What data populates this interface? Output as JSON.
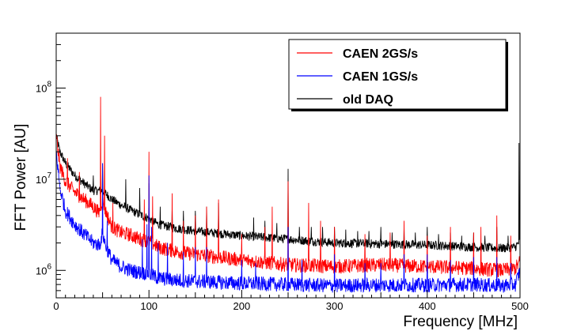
{
  "chart_data": {
    "type": "line",
    "title": "",
    "xlabel": "Frequency [MHz]",
    "ylabel": "FFT Power [AU]",
    "xlim": [
      0,
      500
    ],
    "ylim": [
      500000,
      400000000
    ],
    "yscale": "log",
    "grid": false,
    "legend_position": "top-right",
    "x_ticks": [
      {
        "value": 0,
        "label": "0"
      },
      {
        "value": 100,
        "label": "100"
      },
      {
        "value": 200,
        "label": "200"
      },
      {
        "value": 300,
        "label": "300"
      },
      {
        "value": 400,
        "label": "400"
      },
      {
        "value": 500,
        "label": "500"
      }
    ],
    "y_ticks": [
      {
        "value": 1000000,
        "base": "10",
        "exp": "6"
      },
      {
        "value": 10000000,
        "base": "10",
        "exp": "7"
      },
      {
        "value": 100000000,
        "base": "10",
        "exp": "8"
      }
    ],
    "series": [
      {
        "name": "CAEN 2GS/s",
        "color": "#ff0000",
        "baseline": [
          [
            0,
            30000000
          ],
          [
            4,
            14000000
          ],
          [
            10,
            9500000
          ],
          [
            20,
            7200000
          ],
          [
            30,
            6000000
          ],
          [
            40,
            5000000
          ],
          [
            46,
            4300000
          ],
          [
            50,
            6000000
          ],
          [
            53,
            4500000
          ],
          [
            60,
            3000000
          ],
          [
            70,
            2600000
          ],
          [
            80,
            2450000
          ],
          [
            90,
            2200000
          ],
          [
            100,
            2100000
          ],
          [
            110,
            1800000
          ],
          [
            130,
            1600000
          ],
          [
            150,
            1500000
          ],
          [
            200,
            1300000
          ],
          [
            250,
            1150000
          ],
          [
            300,
            1100000
          ],
          [
            350,
            1150000
          ],
          [
            400,
            1100000
          ],
          [
            450,
            1050000
          ],
          [
            480,
            1000000
          ],
          [
            495,
            1050000
          ],
          [
            500,
            1250000
          ]
        ],
        "noise": 0.08,
        "spikes": [
          [
            12,
            17000000
          ],
          [
            25,
            12000000
          ],
          [
            48,
            80000000
          ],
          [
            52,
            30000000
          ],
          [
            61,
            5500000
          ],
          [
            95,
            6000000
          ],
          [
            100,
            20000000
          ],
          [
            104,
            6500000
          ],
          [
            125,
            7000000
          ],
          [
            137,
            3500000
          ],
          [
            150,
            4000000
          ],
          [
            162,
            5000000
          ],
          [
            175,
            6000000
          ],
          [
            200,
            2500000
          ],
          [
            225,
            3000000
          ],
          [
            233,
            5000000
          ],
          [
            250,
            9500000
          ],
          [
            272,
            5500000
          ],
          [
            285,
            3500000
          ],
          [
            300,
            3000000
          ],
          [
            333,
            2500000
          ],
          [
            360,
            2600000
          ],
          [
            375,
            3500000
          ],
          [
            400,
            2400000
          ],
          [
            425,
            3000000
          ],
          [
            450,
            2600000
          ],
          [
            458,
            3000000
          ],
          [
            475,
            4000000
          ],
          [
            490,
            2400000
          ]
        ]
      },
      {
        "name": "CAEN 1GS/s",
        "color": "#0000ff",
        "baseline": [
          [
            0,
            20000000
          ],
          [
            4,
            8000000
          ],
          [
            10,
            4500000
          ],
          [
            20,
            3200000
          ],
          [
            30,
            2500000
          ],
          [
            40,
            2000000
          ],
          [
            47,
            1900000
          ],
          [
            50,
            2600000
          ],
          [
            53,
            1900000
          ],
          [
            60,
            1300000
          ],
          [
            70,
            1100000
          ],
          [
            80,
            1000000
          ],
          [
            90,
            950000
          ],
          [
            100,
            920000
          ],
          [
            110,
            820000
          ],
          [
            130,
            780000
          ],
          [
            150,
            760000
          ],
          [
            200,
            720000
          ],
          [
            250,
            700000
          ],
          [
            300,
            680000
          ],
          [
            350,
            690000
          ],
          [
            400,
            690000
          ],
          [
            450,
            700000
          ],
          [
            480,
            680000
          ],
          [
            495,
            700000
          ],
          [
            500,
            1000000
          ]
        ],
        "noise": 0.08,
        "spikes": [
          [
            50,
            15000000
          ],
          [
            55,
            3500000
          ],
          [
            93,
            2200000
          ],
          [
            98,
            3200000
          ],
          [
            100,
            11000000
          ],
          [
            103,
            3000000
          ],
          [
            110,
            2000000
          ],
          [
            120,
            2000000
          ],
          [
            137,
            1600000
          ],
          [
            150,
            1800000
          ],
          [
            162,
            1800000
          ],
          [
            200,
            1300000
          ],
          [
            215,
            1200000
          ],
          [
            250,
            3000000
          ],
          [
            265,
            1300000
          ],
          [
            300,
            1500000
          ],
          [
            333,
            1200000
          ],
          [
            350,
            1200000
          ],
          [
            375,
            1500000
          ],
          [
            400,
            1500000
          ],
          [
            425,
            1300000
          ],
          [
            450,
            1400000
          ],
          [
            475,
            1400000
          ],
          [
            490,
            1200000
          ]
        ]
      },
      {
        "name": "old DAQ",
        "color": "#000000",
        "baseline": [
          [
            0,
            30000000
          ],
          [
            4,
            20000000
          ],
          [
            10,
            15000000
          ],
          [
            20,
            11000000
          ],
          [
            30,
            9000000
          ],
          [
            40,
            7500000
          ],
          [
            50,
            7500000
          ],
          [
            60,
            6000000
          ],
          [
            70,
            5200000
          ],
          [
            80,
            4600000
          ],
          [
            90,
            4100000
          ],
          [
            100,
            3700000
          ],
          [
            110,
            3200000
          ],
          [
            130,
            2900000
          ],
          [
            150,
            2700000
          ],
          [
            200,
            2400000
          ],
          [
            250,
            2200000
          ],
          [
            300,
            2000000
          ],
          [
            350,
            1950000
          ],
          [
            400,
            1900000
          ],
          [
            450,
            1800000
          ],
          [
            480,
            1750000
          ],
          [
            495,
            1800000
          ],
          [
            500,
            2100000
          ]
        ],
        "noise": 0.05,
        "spikes": [
          [
            25,
            11000000
          ],
          [
            40,
            11000000
          ],
          [
            50,
            15000000
          ],
          [
            75,
            10000000
          ],
          [
            90,
            8000000
          ],
          [
            100,
            9000000
          ],
          [
            112,
            5000000
          ],
          [
            125,
            5000000
          ],
          [
            137,
            4500000
          ],
          [
            150,
            4500000
          ],
          [
            162,
            5000000
          ],
          [
            175,
            5500000
          ],
          [
            213,
            3800000
          ],
          [
            225,
            3500000
          ],
          [
            238,
            3300000
          ],
          [
            250,
            13000000
          ],
          [
            262,
            3000000
          ],
          [
            275,
            3000000
          ],
          [
            287,
            3000000
          ],
          [
            300,
            3000000
          ],
          [
            312,
            2800000
          ],
          [
            325,
            2700000
          ],
          [
            337,
            2700000
          ],
          [
            350,
            3000000
          ],
          [
            362,
            2600000
          ],
          [
            375,
            3000000
          ],
          [
            387,
            2600000
          ],
          [
            400,
            3000000
          ],
          [
            412,
            2500000
          ],
          [
            425,
            2600000
          ],
          [
            437,
            2400000
          ],
          [
            450,
            2600000
          ],
          [
            462,
            2400000
          ],
          [
            475,
            3000000
          ],
          [
            487,
            2400000
          ],
          [
            499,
            25000000
          ]
        ]
      }
    ]
  }
}
